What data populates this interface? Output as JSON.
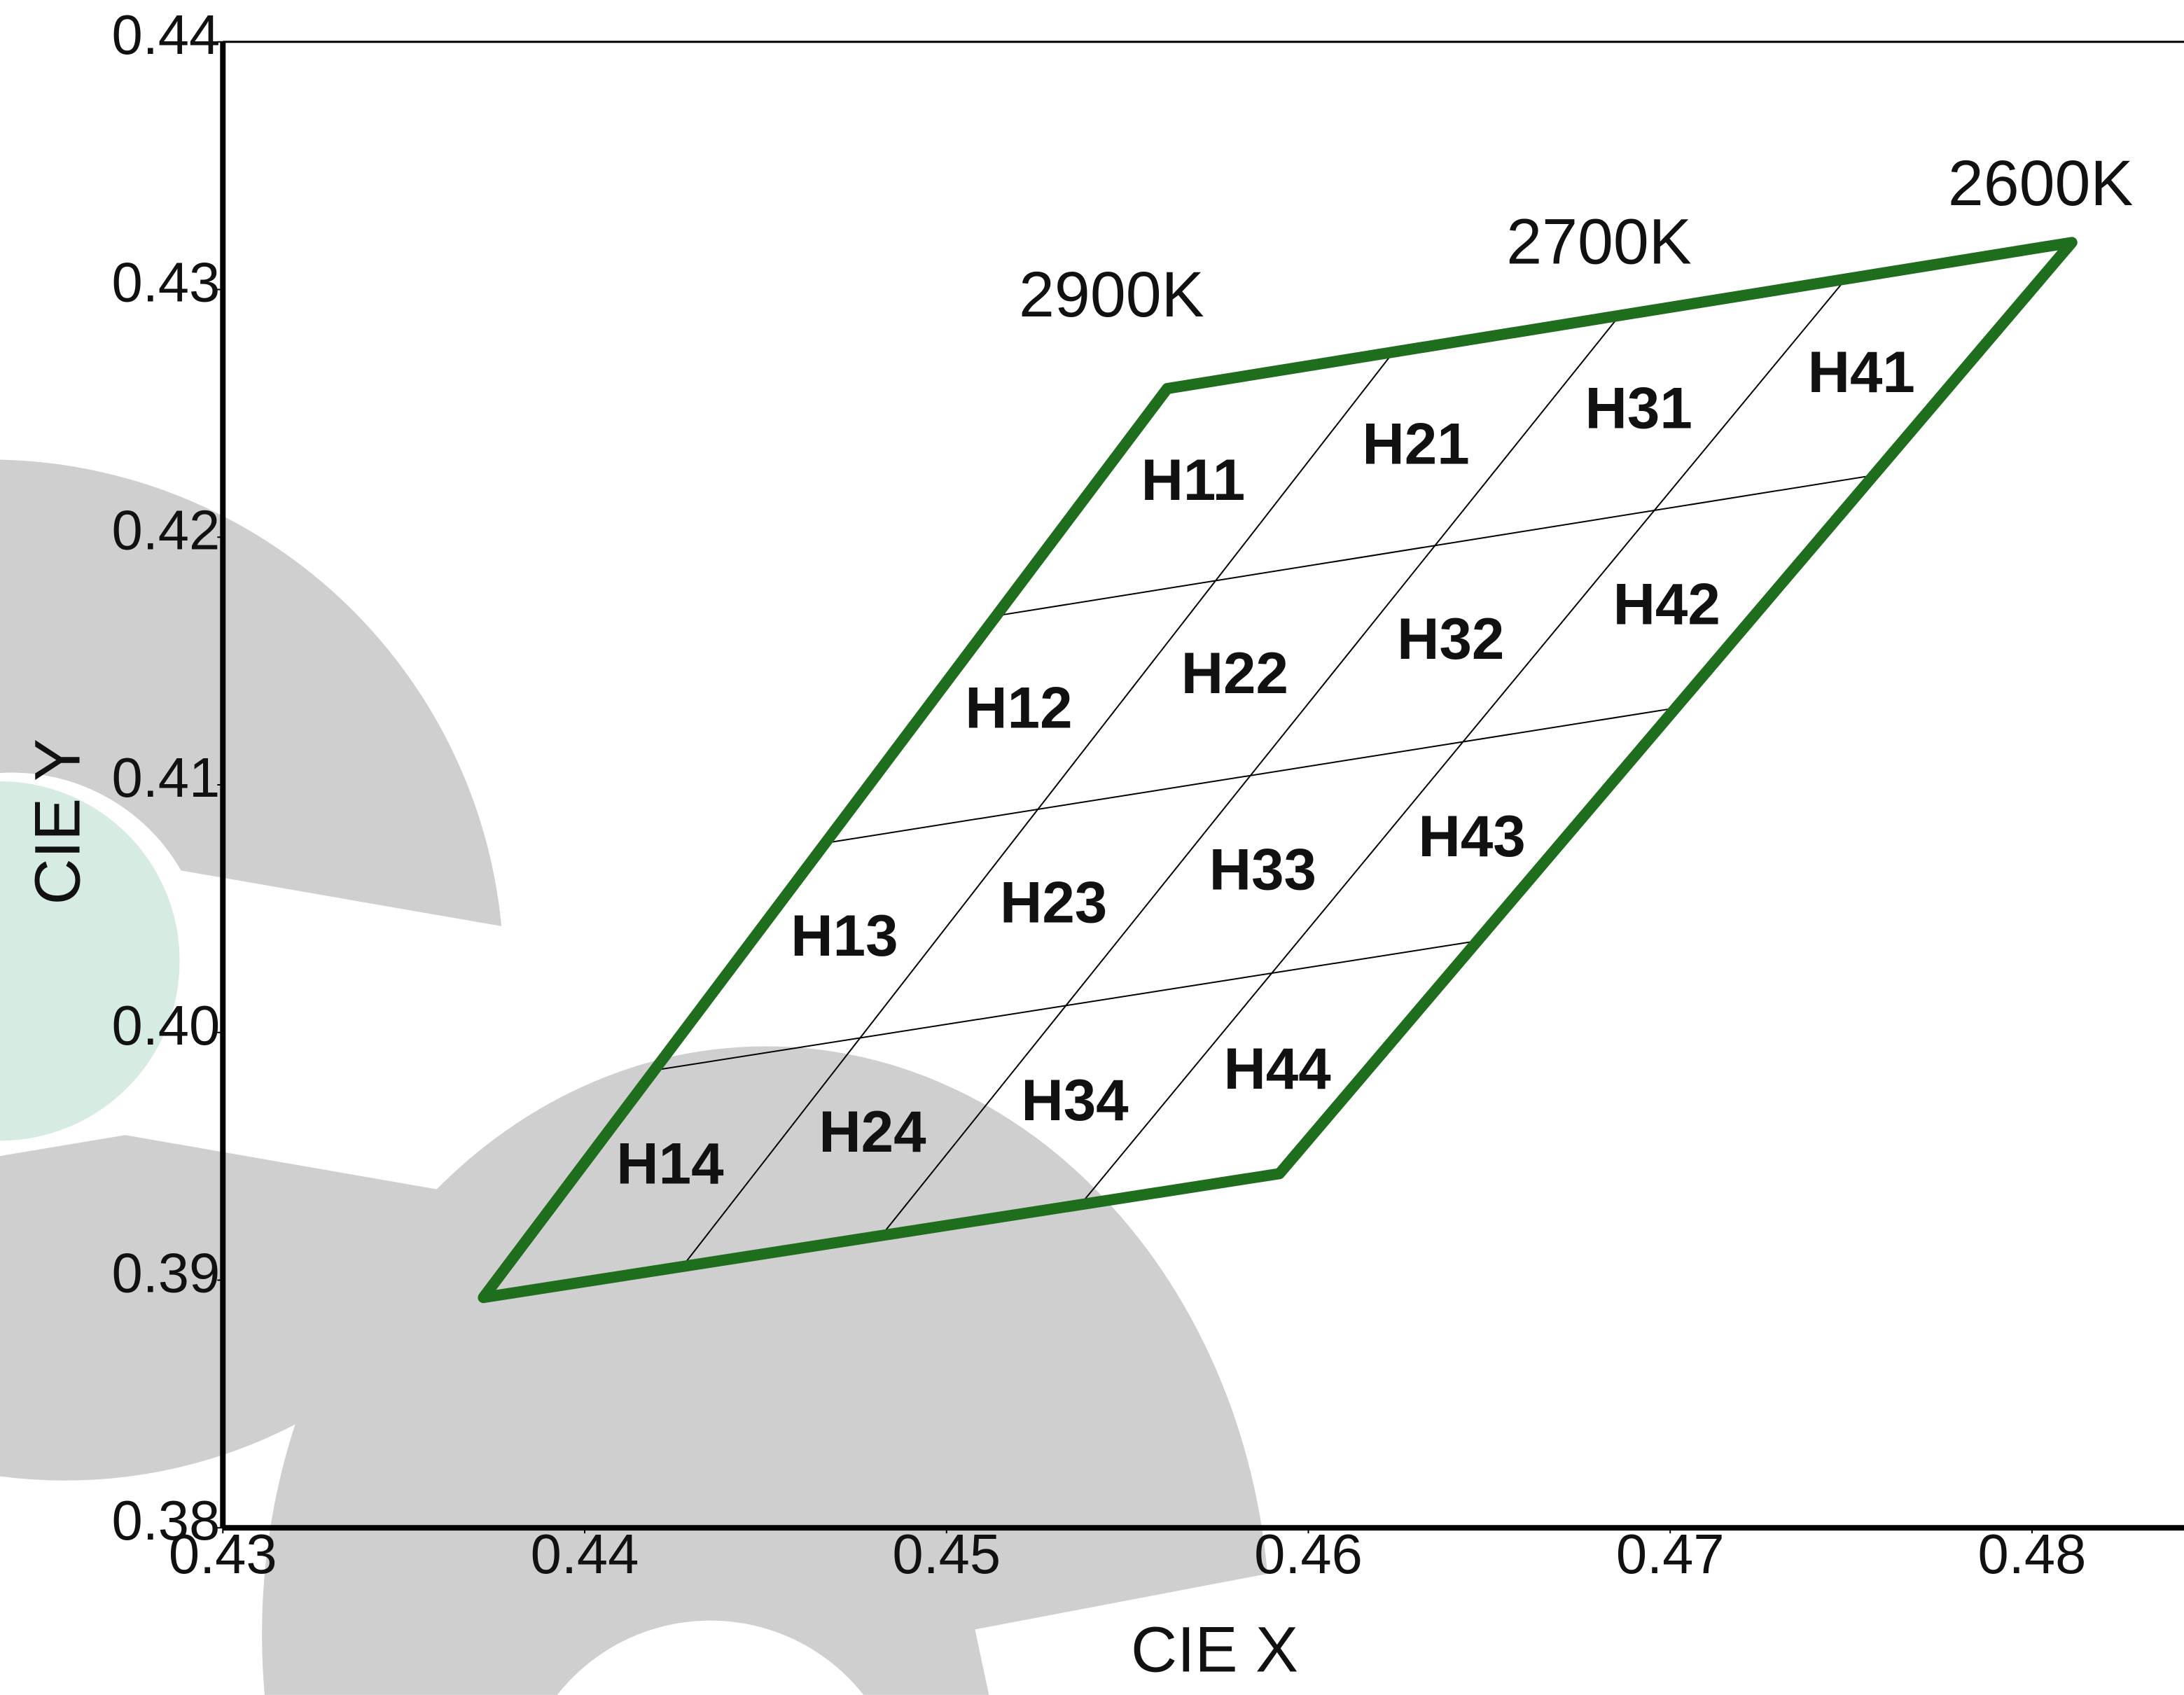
{
  "chart_data": {
    "type": "bin-grid",
    "x_label": "CIE X",
    "y_label": "CIE Y",
    "xlim": [
      0.43,
      0.4842
    ],
    "ylim": [
      0.38,
      0.44
    ],
    "xticks": [
      0.43,
      0.44,
      0.45,
      0.46,
      0.47,
      0.48
    ],
    "yticks": [
      0.38,
      0.39,
      {
        "value": 0.4,
        "label": "0.40"
      },
      0.41,
      0.42,
      0.43,
      0.44
    ],
    "outline_color": "#1e6e1e",
    "corners": {
      "x": [
        0.4561,
        0.4811,
        0.4592,
        0.4372
      ],
      "y": [
        0.426,
        0.4319,
        0.3943,
        0.3893
      ]
    },
    "bins": [
      [
        "H11",
        "H12",
        "H13",
        "H14"
      ],
      [
        "H21",
        "H22",
        "H23",
        "H24"
      ],
      [
        "H31",
        "H32",
        "H33",
        "H34"
      ],
      [
        "H41",
        "H42",
        "H43",
        "H44"
      ]
    ],
    "cct_labels": [
      "2900K",
      "2700K",
      "2600K"
    ]
  }
}
